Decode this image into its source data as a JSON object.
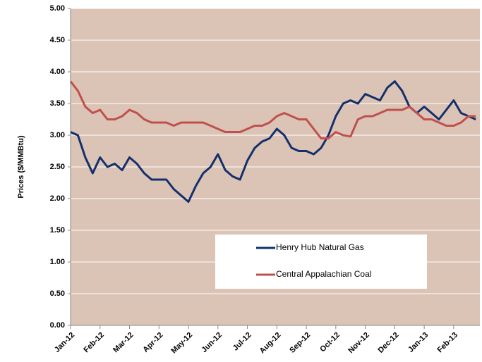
{
  "chart_data": {
    "type": "line",
    "ylabel": "Prices ($/MMBtu)",
    "categories": [
      "Jan-12",
      null,
      null,
      null,
      "Feb-12",
      null,
      null,
      null,
      "Mar-12",
      null,
      null,
      null,
      "Apr-12",
      null,
      null,
      null,
      "May-12",
      null,
      null,
      null,
      "Jun-12",
      null,
      null,
      null,
      "Jul-12",
      null,
      null,
      null,
      "Aug-12",
      null,
      null,
      null,
      "Sep-12",
      null,
      null,
      null,
      "Oct-12",
      null,
      null,
      null,
      "Nov-12",
      null,
      null,
      null,
      "Dec-12",
      null,
      null,
      null,
      "Jan-13",
      null,
      null,
      null,
      "Feb-13",
      null,
      null,
      null
    ],
    "series": [
      {
        "name": "Henry Hub Natural Gas",
        "color": "#14306b",
        "values": [
          3.05,
          3.0,
          2.65,
          2.4,
          2.65,
          2.5,
          2.55,
          2.45,
          2.65,
          2.55,
          2.4,
          2.3,
          2.3,
          2.3,
          2.15,
          2.05,
          1.95,
          2.2,
          2.4,
          2.5,
          2.7,
          2.45,
          2.35,
          2.3,
          2.6,
          2.8,
          2.9,
          2.95,
          3.1,
          3.0,
          2.8,
          2.75,
          2.75,
          2.7,
          2.8,
          3.0,
          3.3,
          3.5,
          3.55,
          3.5,
          3.65,
          3.6,
          3.55,
          3.75,
          3.85,
          3.7,
          3.45,
          3.35,
          3.45,
          3.35,
          3.25,
          3.4,
          3.55,
          3.35,
          3.3,
          3.25
        ]
      },
      {
        "name": "Central Appalachian Coal",
        "color": "#c0504d",
        "values": [
          3.85,
          3.7,
          3.45,
          3.35,
          3.4,
          3.25,
          3.25,
          3.3,
          3.4,
          3.35,
          3.25,
          3.2,
          3.2,
          3.2,
          3.15,
          3.2,
          3.2,
          3.2,
          3.2,
          3.15,
          3.1,
          3.05,
          3.05,
          3.05,
          3.1,
          3.15,
          3.15,
          3.2,
          3.3,
          3.35,
          3.3,
          3.25,
          3.25,
          3.1,
          2.95,
          2.95,
          3.05,
          3.0,
          2.98,
          3.25,
          3.3,
          3.3,
          3.35,
          3.4,
          3.4,
          3.4,
          3.45,
          3.35,
          3.25,
          3.25,
          3.2,
          3.15,
          3.15,
          3.2,
          3.3,
          3.3
        ]
      }
    ],
    "ylim": [
      0,
      5
    ],
    "yticks": [
      {
        "value": 0,
        "label": "0.00"
      },
      {
        "value": 0.5,
        "label": "0.50"
      },
      {
        "value": 1,
        "label": "1.00"
      },
      {
        "value": 1.5,
        "label": "1.50"
      },
      {
        "value": 2,
        "label": "2.00"
      },
      {
        "value": 2.5,
        "label": "2.50"
      },
      {
        "value": 3,
        "label": "3.00"
      },
      {
        "value": 3.5,
        "label": "3.50"
      },
      {
        "value": 4,
        "label": "4.00"
      },
      {
        "value": 4.5,
        "label": "4.50"
      },
      {
        "value": 5,
        "label": "5.00"
      }
    ],
    "grid": true
  }
}
